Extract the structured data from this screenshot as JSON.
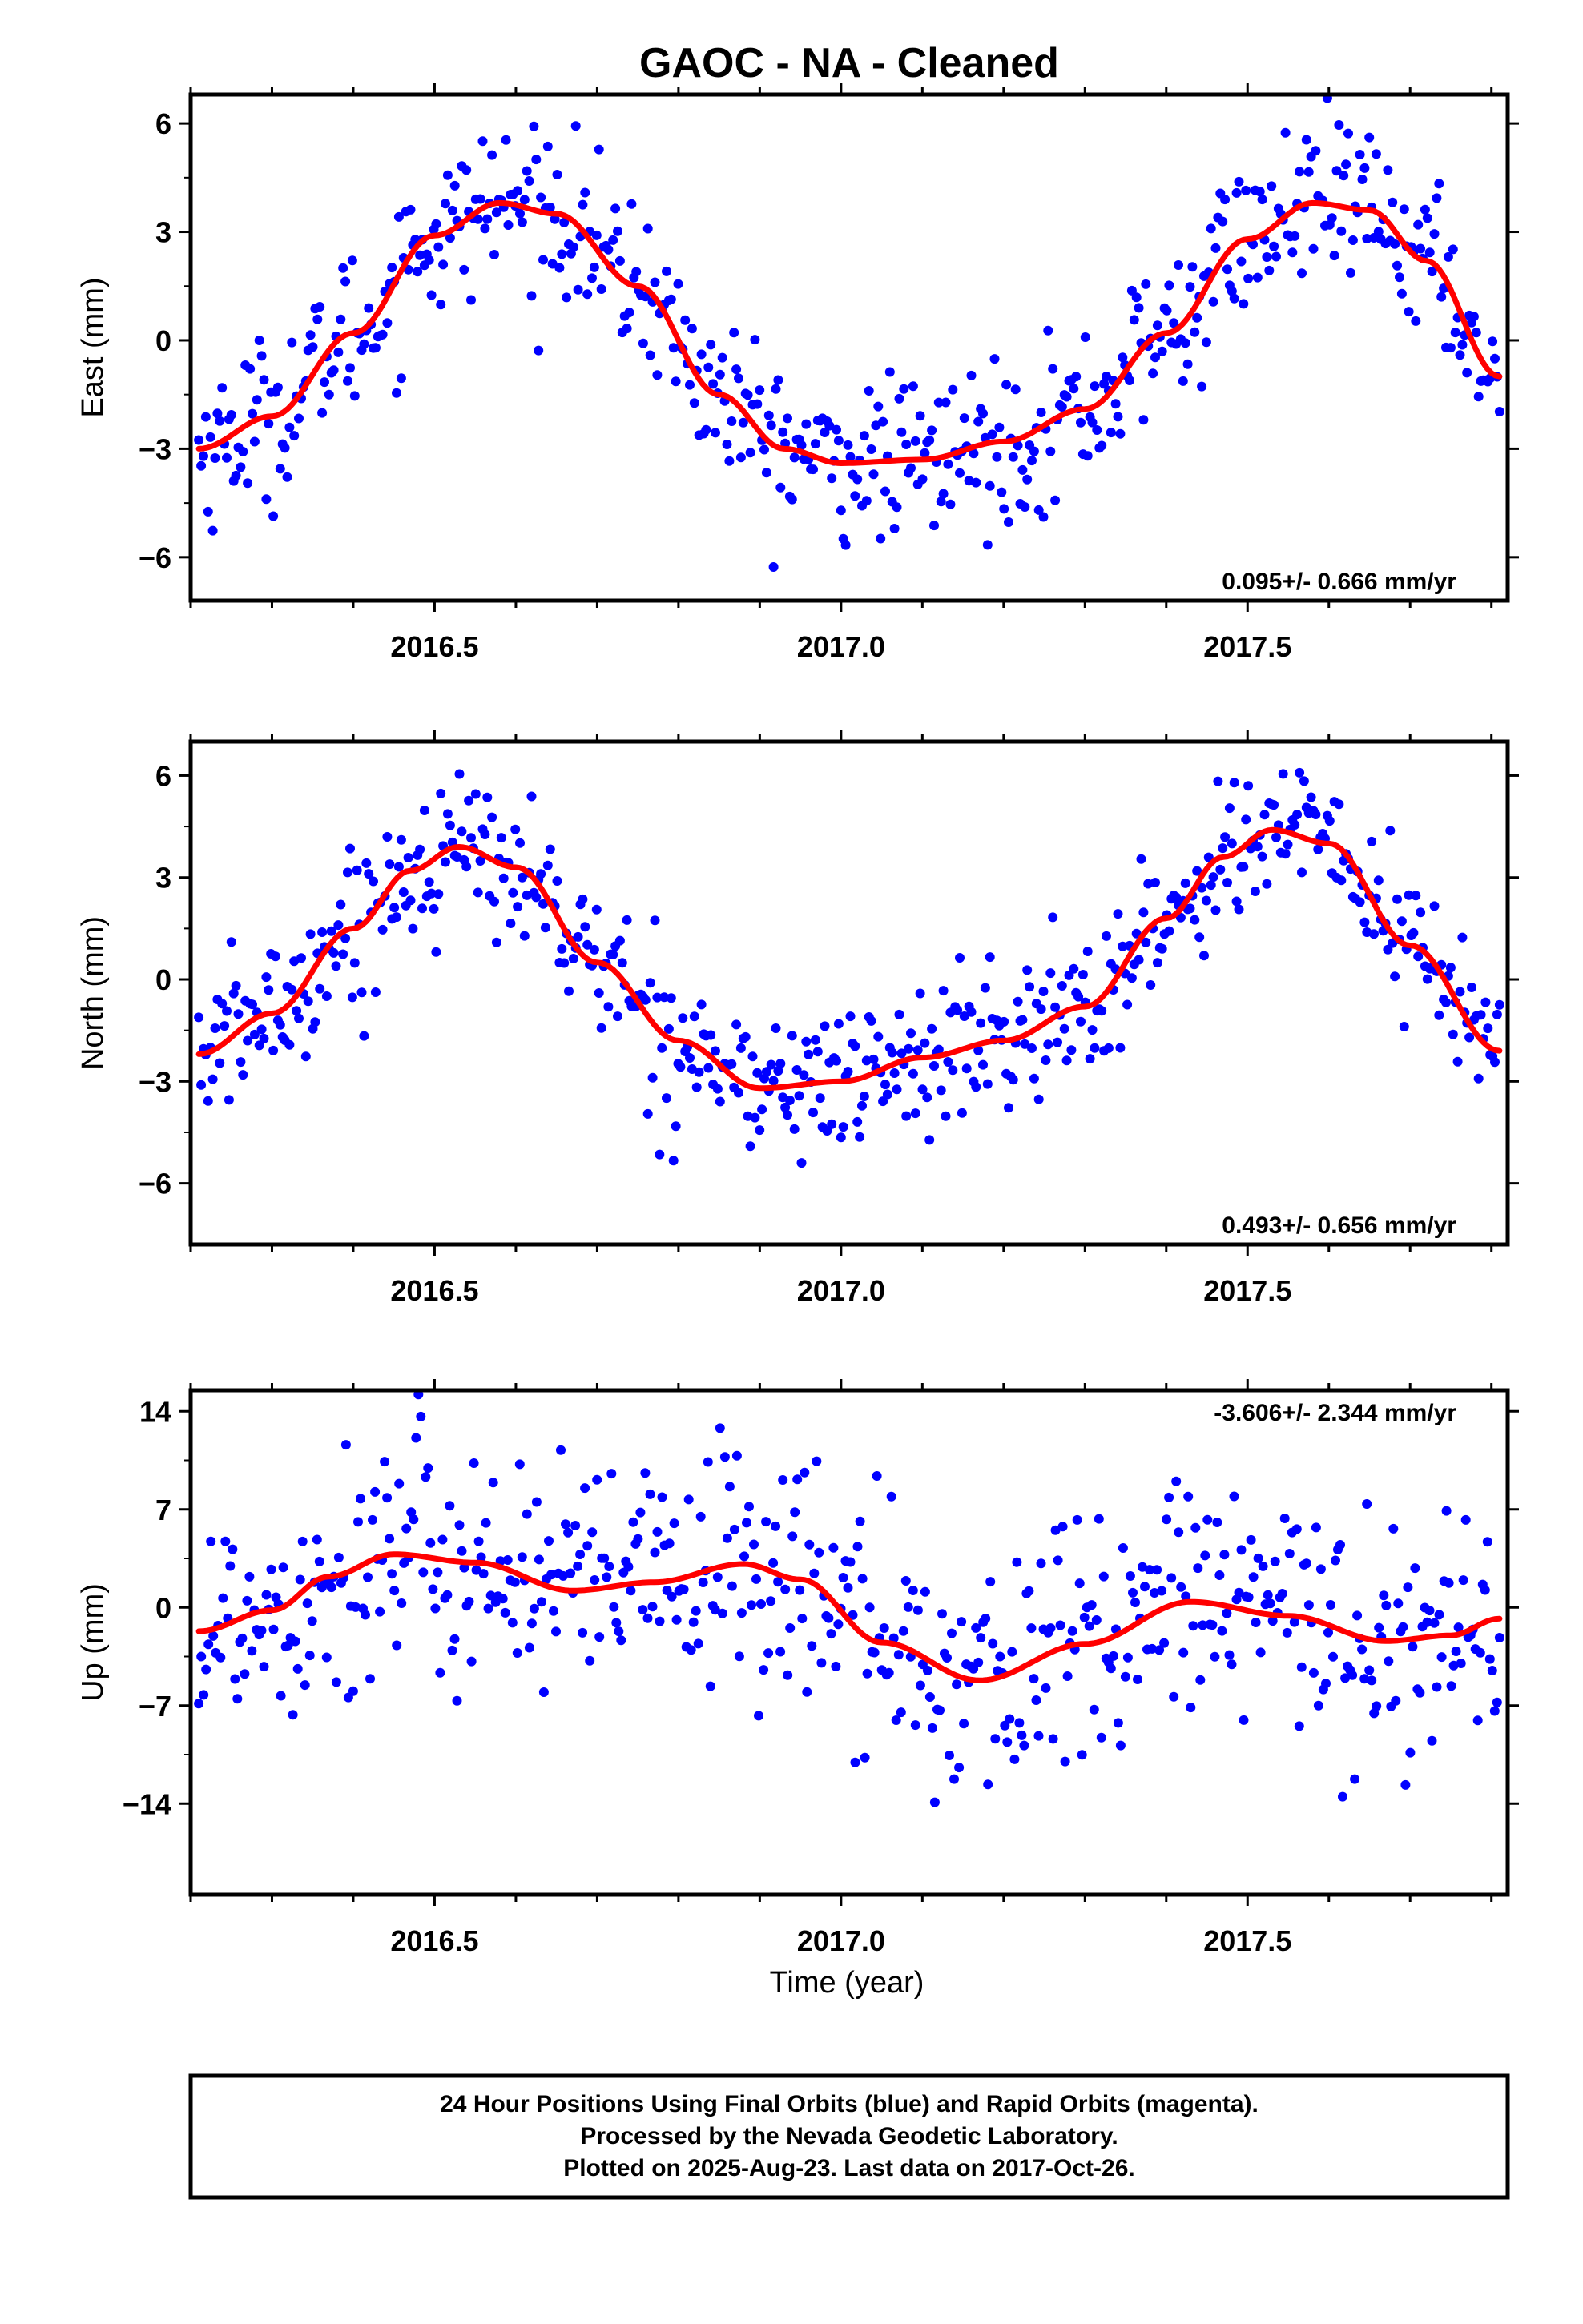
{
  "title": "GAOC  - NA - Cleaned",
  "xlabel": "Time (year)",
  "footer": {
    "line1": "24 Hour Positions Using Final Orbits (blue) and Rapid Orbits (magenta).",
    "line2": "Processed by the Nevada Geodetic Laboratory.",
    "line3": "Plotted on 2025-Aug-23. Last data on 2017-Oct-26."
  },
  "colors": {
    "points": "#0000ff",
    "fit": "#ff0000",
    "frame": "#000000"
  },
  "chart_data": [
    {
      "type": "scatter",
      "ylabel": "East (mm)",
      "xlim": [
        2016.2,
        2017.82
      ],
      "ylim": [
        -7.2,
        6.8
      ],
      "xticks": [
        2016.5,
        2017.0,
        2017.5
      ],
      "xtick_labels": [
        "2016.5",
        "2017.0",
        "2017.5"
      ],
      "yticks": [
        -6,
        -3,
        0,
        3,
        6
      ],
      "ytick_labels": [
        "−6",
        "−3",
        "0",
        "3",
        "6"
      ],
      "rate_label": "0.095+/- 0.666 mm/yr",
      "rate_position": "bottom-right",
      "n_points": 560,
      "x_range": [
        2016.21,
        2017.81
      ],
      "noise_mm": 1.1,
      "fit": {
        "x": [
          2016.21,
          2016.3,
          2016.4,
          2016.5,
          2016.58,
          2016.65,
          2016.75,
          2016.85,
          2016.93,
          2017.0,
          2017.1,
          2017.2,
          2017.3,
          2017.4,
          2017.5,
          2017.58,
          2017.65,
          2017.72,
          2017.81
        ],
        "y": [
          -3.0,
          -2.1,
          0.2,
          2.9,
          3.8,
          3.5,
          1.5,
          -1.5,
          -3.0,
          -3.4,
          -3.3,
          -2.8,
          -1.9,
          0.2,
          2.8,
          3.8,
          3.6,
          2.2,
          -1.0
        ]
      }
    },
    {
      "type": "scatter",
      "ylabel": "North (mm)",
      "xlim": [
        2016.2,
        2017.82
      ],
      "ylim": [
        -7.8,
        7.0
      ],
      "xticks": [
        2016.5,
        2017.0,
        2017.5
      ],
      "xtick_labels": [
        "2016.5",
        "2017.0",
        "2017.5"
      ],
      "yticks": [
        -6,
        -3,
        0,
        3,
        6
      ],
      "ytick_labels": [
        "−6",
        "−3",
        "0",
        "3",
        "6"
      ],
      "rate_label": "0.493+/- 0.656 mm/yr",
      "rate_position": "bottom-right",
      "n_points": 560,
      "x_range": [
        2016.21,
        2017.81
      ],
      "noise_mm": 1.1,
      "fit": {
        "x": [
          2016.21,
          2016.3,
          2016.4,
          2016.47,
          2016.53,
          2016.6,
          2016.7,
          2016.8,
          2016.9,
          2017.0,
          2017.1,
          2017.2,
          2017.3,
          2017.4,
          2017.47,
          2017.53,
          2017.6,
          2017.7,
          2017.81
        ],
        "y": [
          -2.2,
          -1.0,
          1.5,
          3.2,
          3.9,
          3.3,
          0.5,
          -1.8,
          -3.2,
          -3.0,
          -2.3,
          -1.8,
          -0.8,
          1.8,
          3.6,
          4.4,
          4.0,
          1.0,
          -2.1
        ]
      }
    },
    {
      "type": "scatter",
      "ylabel": "Up (mm)",
      "xlim": [
        2016.2,
        2017.82
      ],
      "ylim": [
        -20.5,
        15.5
      ],
      "xticks": [
        2016.5,
        2017.0,
        2017.5
      ],
      "xtick_labels": [
        "2016.5",
        "2017.0",
        "2017.5"
      ],
      "yticks": [
        -14,
        -7,
        0,
        7,
        14
      ],
      "ytick_labels": [
        "−14",
        "−7",
        "0",
        "7",
        "14"
      ],
      "rate_label": "-3.606+/- 2.344 mm/yr",
      "rate_position": "top-right",
      "n_points": 540,
      "x_range": [
        2016.21,
        2017.81
      ],
      "noise_mm": 4.5,
      "fit": {
        "x": [
          2016.21,
          2016.3,
          2016.37,
          2016.45,
          2016.55,
          2016.67,
          2016.77,
          2016.88,
          2016.95,
          2017.05,
          2017.17,
          2017.3,
          2017.43,
          2017.55,
          2017.67,
          2017.75,
          2017.81
        ],
        "y": [
          -1.7,
          -0.2,
          2.2,
          3.8,
          3.2,
          1.2,
          1.8,
          3.1,
          2.0,
          -2.5,
          -5.2,
          -2.6,
          0.4,
          -0.6,
          -2.4,
          -2.0,
          -0.8
        ]
      }
    }
  ]
}
